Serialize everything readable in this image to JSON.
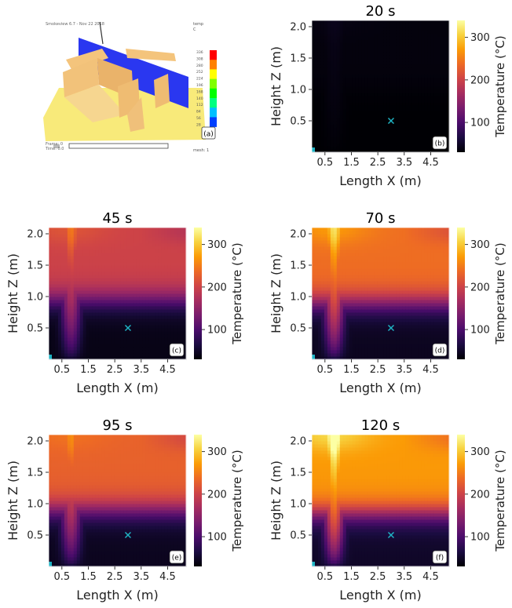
{
  "figure": {
    "colorbar_label": "Temperature (°C)",
    "colorbar_ticks": [
      100,
      200,
      300
    ],
    "colorbar_range": [
      30,
      340
    ],
    "colormap": [
      "#000004",
      "#1b0c41",
      "#4a0c6b",
      "#781c6d",
      "#a52c60",
      "#cf4446",
      "#ed6925",
      "#fb9b06",
      "#f7d13d",
      "#fcffa4"
    ],
    "marker_color": "#1fb3c4",
    "sensor_location": {
      "x": 3.0,
      "z": 0.5
    }
  },
  "panel_a": {
    "label": "(a)",
    "header_text": "Smokeview 6.7 - Nov 22 2018",
    "legend_title": "temp",
    "legend_unit": "C",
    "legend_ticks": [
      "336",
      "308",
      "280",
      "252",
      "224",
      "196",
      "168",
      "140",
      "112",
      "84",
      "56",
      "28"
    ],
    "legend_colors": [
      "#ff0000",
      "#ff8000",
      "#ffff00",
      "#80ff00",
      "#00ff00",
      "#00ff80",
      "#00c0ff",
      "#0040ff"
    ],
    "frame_label": "Frame: 0",
    "time_label": "Time: 0.0",
    "mesh_label": "mesh: 1"
  },
  "chart_data": [
    {
      "type": "heatmap",
      "panel": "(b)",
      "title": "20 s",
      "xlabel": "Length X (m)",
      "ylabel": "Height Z (m)",
      "xticks": [
        "0.5",
        "1.5",
        "2.5",
        "3.5",
        "4.5"
      ],
      "yticks": [
        "0.5",
        "1.0",
        "1.5",
        "2.0"
      ],
      "xlim": [
        0,
        5.2
      ],
      "ylim": [
        0,
        2.1
      ],
      "description_values": {
        "ceiling_temp": 35,
        "plume_peak": 40,
        "lower_layer": 30,
        "interface_height": 1.0
      }
    },
    {
      "type": "heatmap",
      "panel": "(c)",
      "title": "45 s",
      "xlabel": "Length X (m)",
      "ylabel": "Height Z (m)",
      "xticks": [
        "0.5",
        "1.5",
        "2.5",
        "3.5",
        "4.5"
      ],
      "yticks": [
        "0.5",
        "1.0",
        "1.5",
        "2.0"
      ],
      "xlim": [
        0,
        5.2
      ],
      "ylim": [
        0,
        2.1
      ],
      "description_values": {
        "ceiling_temp": 200,
        "plume_peak": 230,
        "lower_layer": 40,
        "interface_height": 0.95
      }
    },
    {
      "type": "heatmap",
      "panel": "(d)",
      "title": "70 s",
      "xlabel": "Length X (m)",
      "ylabel": "Height Z (m)",
      "xticks": [
        "0.5",
        "1.5",
        "2.5",
        "3.5",
        "4.5"
      ],
      "yticks": [
        "0.5",
        "1.0",
        "1.5",
        "2.0"
      ],
      "xlim": [
        0,
        5.2
      ],
      "ylim": [
        0,
        2.1
      ],
      "description_values": {
        "ceiling_temp": 240,
        "plume_peak": 290,
        "lower_layer": 45,
        "interface_height": 0.9
      }
    },
    {
      "type": "heatmap",
      "panel": "(e)",
      "title": "95 s",
      "xlabel": "Length X (m)",
      "ylabel": "Height Z (m)",
      "xticks": [
        "0.5",
        "1.5",
        "2.5",
        "3.5",
        "4.5"
      ],
      "yticks": [
        "0.5",
        "1.0",
        "1.5",
        "2.0"
      ],
      "xlim": [
        0,
        5.2
      ],
      "ylim": [
        0,
        2.1
      ],
      "description_values": {
        "ceiling_temp": 230,
        "plume_peak": 250,
        "lower_layer": 45,
        "interface_height": 0.9
      }
    },
    {
      "type": "heatmap",
      "panel": "(f)",
      "title": "120 s",
      "xlabel": "Length X (m)",
      "ylabel": "Height Z (m)",
      "xticks": [
        "0.5",
        "1.5",
        "2.5",
        "3.5",
        "4.5"
      ],
      "yticks": [
        "0.5",
        "1.0",
        "1.5",
        "2.0"
      ],
      "xlim": [
        0,
        5.2
      ],
      "ylim": [
        0,
        2.1
      ],
      "description_values": {
        "ceiling_temp": 270,
        "plume_peak": 335,
        "lower_layer": 50,
        "interface_height": 0.85
      }
    }
  ]
}
